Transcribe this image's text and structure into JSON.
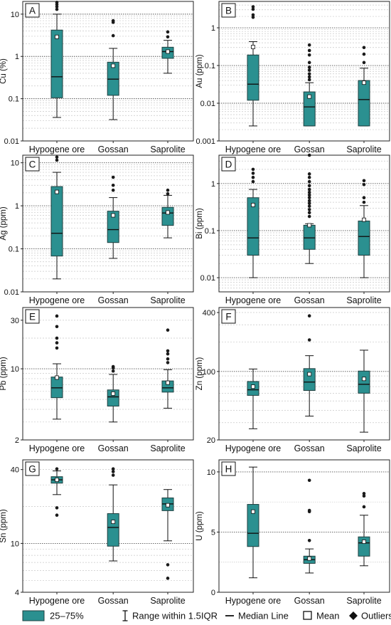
{
  "colors": {
    "box_fill": "#2b9090",
    "box_stroke": "#1f3f3f",
    "mean_fill": "#ffffff",
    "grid_major": "#555555",
    "grid_minor": "#c8c8c8",
    "outlier": "#1a1a1a"
  },
  "legend": {
    "box_label": "25–75%",
    "whisker_label": "Range within 1.5IQR",
    "median_label": "Median Line",
    "mean_label": "Mean",
    "outlier_label": "Outliers"
  },
  "chart_data": [
    {
      "type": "box",
      "panel_label": "A",
      "ylabel": "Cu (%)",
      "scale": "log",
      "ylim": [
        0.01,
        20
      ],
      "yticks": [
        0.01,
        0.1,
        1,
        10
      ],
      "yticklabels": [
        "0.01",
        "0.1",
        "1",
        "10"
      ],
      "categories": [
        "Hypogene ore",
        "Gossan",
        "Saprolite"
      ],
      "boxes": [
        {
          "whisker_low": 0.036,
          "q1": 0.105,
          "median": 0.33,
          "q3": 4.2,
          "whisker_high": 10,
          "mean": 2.9,
          "outliers": [
            13,
            15,
            17,
            19
          ]
        },
        {
          "whisker_low": 0.032,
          "q1": 0.12,
          "median": 0.29,
          "q3": 0.73,
          "whisker_high": 1.55,
          "mean": 0.6,
          "outliers": [
            3.1,
            6.4,
            7.0
          ]
        },
        {
          "whisker_low": 0.4,
          "q1": 0.9,
          "median": 1.3,
          "q3": 1.65,
          "whisker_high": 2.4,
          "mean": 1.3,
          "outliers": [
            2.9,
            3.8
          ]
        }
      ]
    },
    {
      "type": "box",
      "panel_label": "B",
      "ylabel": "Au (ppm)",
      "scale": "log",
      "ylim": [
        0.001,
        5
      ],
      "yticks": [
        0.001,
        0.01,
        0.1,
        1
      ],
      "yticklabels": [
        "0.001",
        "0.01",
        "0.1",
        "1"
      ],
      "categories": [
        "Hypogene ore",
        "Gossan",
        "Saprolite"
      ],
      "boxes": [
        {
          "whisker_low": 0.0025,
          "q1": 0.012,
          "median": 0.032,
          "q3": 0.19,
          "whisker_high": 0.43,
          "mean": 0.31,
          "outliers": [
            1.9,
            2.2,
            3.1,
            3.6
          ]
        },
        {
          "whisker_low": 0.0025,
          "q1": 0.0025,
          "median": 0.008,
          "q3": 0.02,
          "whisker_high": 0.035,
          "mean": 0.015,
          "outliers": [
            0.042,
            0.05,
            0.06,
            0.075,
            0.09,
            0.12,
            0.19,
            0.25,
            0.35
          ]
        },
        {
          "whisker_low": 0.0025,
          "q1": 0.0025,
          "median": 0.0125,
          "q3": 0.04,
          "whisker_high": 0.085,
          "mean": 0.035,
          "outliers": [
            0.12,
            0.2,
            0.3
          ]
        }
      ]
    },
    {
      "type": "box",
      "panel_label": "C",
      "ylabel": "Ag (ppm)",
      "scale": "log",
      "ylim": [
        0.01,
        15
      ],
      "yticks": [
        0.01,
        0.1,
        1,
        10
      ],
      "yticklabels": [
        "0.01",
        "0.1",
        "1",
        "10"
      ],
      "categories": [
        "Hypogene ore",
        "Gossan",
        "Saprolite"
      ],
      "boxes": [
        {
          "whisker_low": 0.02,
          "q1": 0.068,
          "median": 0.23,
          "q3": 2.8,
          "whisker_high": 6.0,
          "mean": 2.1,
          "outliers": [
            11.5,
            13.5
          ]
        },
        {
          "whisker_low": 0.06,
          "q1": 0.14,
          "median": 0.28,
          "q3": 0.75,
          "whisker_high": 1.55,
          "mean": 0.6,
          "outliers": [
            2.3,
            3.0,
            4.6
          ]
        },
        {
          "whisker_low": 0.18,
          "q1": 0.35,
          "median": 0.68,
          "q3": 0.92,
          "whisker_high": 1.75,
          "mean": 0.7,
          "outliers": [
            1.9,
            2.3
          ]
        }
      ]
    },
    {
      "type": "box",
      "panel_label": "D",
      "ylabel": "Bi (ppm)",
      "scale": "log",
      "ylim": [
        0.005,
        4
      ],
      "yticks": [
        0.01,
        0.1,
        1
      ],
      "yticklabels": [
        "0.01",
        "0.1",
        "1"
      ],
      "categories": [
        "Hypogene ore",
        "Gossan",
        "Saprolite"
      ],
      "boxes": [
        {
          "whisker_low": 0.01,
          "q1": 0.03,
          "median": 0.07,
          "q3": 0.5,
          "whisker_high": 0.75,
          "mean": 0.35,
          "outliers": [
            1.1,
            1.35,
            1.65,
            2.0
          ]
        },
        {
          "whisker_low": 0.02,
          "q1": 0.04,
          "median": 0.07,
          "q3": 0.13,
          "whisker_high": 0.14,
          "mean": 0.13,
          "outliers": [
            0.2,
            0.24,
            0.28,
            0.33,
            0.38,
            0.43,
            0.5,
            0.57,
            0.65,
            0.75,
            0.9,
            1.1,
            1.35,
            1.6,
            4.0
          ]
        },
        {
          "whisker_low": 0.01,
          "q1": 0.03,
          "median": 0.075,
          "q3": 0.16,
          "whisker_high": 0.34,
          "mean": 0.17,
          "outliers": [
            0.4,
            0.5,
            0.95,
            1.15
          ]
        }
      ]
    },
    {
      "type": "box",
      "panel_label": "E",
      "ylabel": "Pb (ppm)",
      "scale": "log",
      "ylim": [
        2,
        40
      ],
      "yticks": [
        2,
        10,
        30
      ],
      "yticklabels": [
        "2",
        "10",
        "30"
      ],
      "categories": [
        "Hypogene ore",
        "Gossan",
        "Saprolite"
      ],
      "boxes": [
        {
          "whisker_low": 3.2,
          "q1": 5.2,
          "median": 6.5,
          "q3": 8.3,
          "whisker_high": 11.2,
          "mean": 8.2,
          "outliers": [
            16,
            18,
            20,
            26,
            33
          ]
        },
        {
          "whisker_low": 3.0,
          "q1": 4.3,
          "median": 5.3,
          "q3": 6.2,
          "whisker_high": 8.8,
          "mean": 5.7,
          "outliers": [
            9.5,
            10.2,
            10.5
          ]
        },
        {
          "whisker_low": 4.1,
          "q1": 5.9,
          "median": 6.5,
          "q3": 7.6,
          "whisker_high": 9.8,
          "mean": 7.3,
          "outliers": [
            11.5,
            12.5,
            14,
            15,
            24
          ]
        }
      ]
    },
    {
      "type": "box",
      "panel_label": "F",
      "ylabel": "Zn (ppm)",
      "scale": "log",
      "ylim": [
        20,
        450
      ],
      "yticks": [
        20,
        100,
        400
      ],
      "yticklabels": [
        "20",
        "100",
        "400"
      ],
      "categories": [
        "Hypogene ore",
        "Gossan",
        "Saprolite"
      ],
      "boxes": [
        {
          "whisker_low": 26,
          "q1": 57,
          "median": 65,
          "q3": 79,
          "whisker_high": 106,
          "mean": 70,
          "outliers": []
        },
        {
          "whisker_low": 35,
          "q1": 64,
          "median": 78,
          "q3": 107,
          "whisker_high": 145,
          "mean": 94,
          "outliers": [
            210,
            370
          ]
        },
        {
          "whisker_low": 24,
          "q1": 60,
          "median": 74,
          "q3": 101,
          "whisker_high": 165,
          "mean": 84,
          "outliers": []
        }
      ]
    },
    {
      "type": "box",
      "panel_label": "G",
      "ylabel": "Sn (ppm)",
      "scale": "log",
      "ylim": [
        4,
        48
      ],
      "yticks": [
        4,
        10,
        40
      ],
      "yticklabels": [
        "4",
        "10",
        "40"
      ],
      "categories": [
        "Hypogene ore",
        "Gossan",
        "Saprolite"
      ],
      "boxes": [
        {
          "whisker_low": 25,
          "q1": 31,
          "median": 33,
          "q3": 35,
          "whisker_high": 39,
          "mean": 33,
          "outliers": [
            17,
            19.5,
            40.5
          ]
        },
        {
          "whisker_low": 7.2,
          "q1": 9.5,
          "median": 13.5,
          "q3": 17.5,
          "whisker_high": 30,
          "mean": 15,
          "outliers": [
            36,
            38.5,
            40.5
          ]
        },
        {
          "whisker_low": 10.5,
          "q1": 18.5,
          "median": 21,
          "q3": 23.5,
          "whisker_high": 27.5,
          "mean": 20.5,
          "outliers": [
            5.2,
            6.7
          ]
        }
      ]
    },
    {
      "type": "box",
      "panel_label": "H",
      "ylabel": "U (ppm)",
      "scale": "linear",
      "ylim": [
        0,
        11
      ],
      "yticks": [
        0,
        5,
        10
      ],
      "yticklabels": [
        "0",
        "5",
        "10"
      ],
      "categories": [
        "Hypogene ore",
        "Gossan",
        "Saprolite"
      ],
      "boxes": [
        {
          "whisker_low": 1.2,
          "q1": 3.8,
          "median": 4.9,
          "q3": 7.3,
          "whisker_high": 10.4,
          "mean": 6.7,
          "outliers": []
        },
        {
          "whisker_low": 1.6,
          "q1": 2.4,
          "median": 2.7,
          "q3": 3.0,
          "whisker_high": 3.6,
          "mean": 2.8,
          "outliers": [
            4.3,
            6.7,
            6.8,
            9.3
          ]
        },
        {
          "whisker_low": 2.2,
          "q1": 3.0,
          "median": 4.1,
          "q3": 4.6,
          "whisker_high": 6.4,
          "mean": 4.2,
          "outliers": [
            7.1,
            8.0,
            8.2
          ]
        }
      ]
    }
  ]
}
